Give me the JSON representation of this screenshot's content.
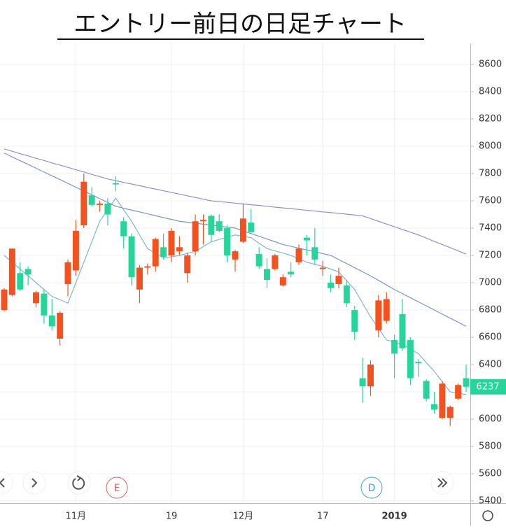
{
  "chart_data": {
    "type": "candlestick",
    "title": "エントリー前日の日足チャート",
    "categories": [
      null,
      null,
      null,
      null,
      null,
      null,
      null,
      null,
      null,
      "11月",
      null,
      null,
      null,
      null,
      null,
      null,
      null,
      null,
      null,
      null,
      null,
      "19",
      null,
      null,
      null,
      null,
      null,
      null,
      null,
      null,
      "12月",
      null,
      null,
      null,
      null,
      null,
      null,
      null,
      null,
      null,
      "17",
      null,
      null,
      null,
      null,
      null,
      null,
      null,
      null,
      "2019",
      null,
      null,
      null,
      null,
      null,
      null,
      null,
      null,
      null
    ],
    "bold_category": "2019",
    "ylim": [
      5400,
      8600
    ],
    "yticks": [
      5400,
      5600,
      5800,
      6000,
      6200,
      6400,
      6600,
      6800,
      7000,
      7200,
      7400,
      7600,
      7800,
      8000,
      8200,
      8400,
      8600
    ],
    "grid": true,
    "up_color": "#f4511e",
    "down_color": "#26d59a",
    "open": [
      6800,
      6910,
      7070,
      7100,
      6850,
      6920,
      6760,
      6590,
      6990,
      7090,
      7420,
      7640,
      7570,
      7580,
      7730,
      7450,
      7340,
      6950,
      7110,
      7120,
      7260,
      7200,
      7230,
      7070,
      7230,
      7450,
      7490,
      7450,
      7400,
      7170,
      7300,
      7440,
      7210,
      7100,
      7100,
      6980,
      7080,
      7150,
      7330,
      7260,
      7100,
      7000,
      6990,
      6980,
      6800,
      6300,
      6240,
      6650,
      6720,
      6580,
      6770,
      6580,
      6420,
      6280,
      6110,
      6010,
      6010,
      6150,
      6300
    ],
    "high": [
      6960,
      7250,
      7150,
      7120,
      6940,
      6950,
      6880,
      6790,
      7170,
      7460,
      7800,
      7700,
      7600,
      7620,
      7780,
      7480,
      7360,
      7130,
      7140,
      7330,
      7360,
      7400,
      7340,
      7220,
      7500,
      7500,
      7500,
      7500,
      7420,
      7240,
      7580,
      7540,
      7260,
      7180,
      7210,
      7060,
      7150,
      7280,
      7350,
      7400,
      7160,
      7060,
      7110,
      7020,
      6830,
      6450,
      6430,
      6910,
      6930,
      6620,
      6880,
      6600,
      6440,
      6290,
      6200,
      6280,
      6100,
      6260,
      6400
    ],
    "low": [
      6790,
      6900,
      6940,
      6980,
      6820,
      6700,
      6650,
      6540,
      6900,
      7050,
      7400,
      7560,
      7520,
      7420,
      7670,
      7250,
      6980,
      6850,
      7060,
      7080,
      7170,
      7150,
      7200,
      7000,
      7200,
      7280,
      7300,
      7370,
      7150,
      7080,
      7290,
      7360,
      7100,
      6960,
      7090,
      6970,
      7040,
      7130,
      7200,
      7130,
      7050,
      6930,
      6960,
      6820,
      6580,
      6120,
      6170,
      6600,
      6700,
      6300,
      6500,
      6250,
      6310,
      6130,
      6040,
      6000,
      5950,
      6140,
      6200
    ],
    "close": [
      6950,
      7250,
      6950,
      7060,
      6930,
      6760,
      6680,
      6780,
      7150,
      7380,
      7740,
      7570,
      7580,
      7500,
      7720,
      7340,
      7040,
      7110,
      7120,
      7320,
      7190,
      7380,
      7260,
      7200,
      7450,
      7460,
      7350,
      7380,
      7200,
      7230,
      7470,
      7370,
      7120,
      7020,
      7200,
      7040,
      7060,
      7250,
      7310,
      7170,
      7110,
      6960,
      7050,
      6850,
      6640,
      6240,
      6400,
      6870,
      6880,
      6480,
      6520,
      6300,
      6410,
      6150,
      6070,
      6260,
      6090,
      6250,
      6237
    ],
    "lines": [
      {
        "color": "#7fb6d9",
        "values": [
          7200,
          7150,
          7100,
          7050,
          7000,
          6950,
          6900,
          6875,
          6850,
          7000,
          7150,
          7300,
          7450,
          7535,
          7620,
          7535,
          7450,
          7350,
          7250,
          7215,
          7180,
          7190,
          7200,
          7215,
          7230,
          7265,
          7300,
          7317,
          7333,
          7350,
          7340,
          7330,
          7290,
          7250,
          7233,
          7217,
          7200,
          7175,
          7150,
          7135,
          7120,
          7100,
          7080,
          7015,
          6950,
          6850,
          6750,
          6665,
          6580,
          6565,
          6550,
          6515,
          6480,
          6415,
          6350,
          6275,
          6200,
          6190,
          6180
        ]
      },
      {
        "color": "#7c95cf",
        "values": [
          7950,
          7922,
          7894,
          7867,
          7839,
          7811,
          7783,
          7756,
          7728,
          7700,
          7672,
          7644,
          7616,
          7588,
          7560,
          7546,
          7532,
          7519,
          7505,
          7491,
          7477,
          7464,
          7450,
          7443,
          7436,
          7429,
          7421,
          7414,
          7407,
          7400,
          7380,
          7360,
          7340,
          7320,
          7300,
          7280,
          7267,
          7253,
          7240,
          7227,
          7213,
          7200,
          7170,
          7140,
          7110,
          7080,
          7050,
          7017,
          6983,
          6950,
          6920,
          6890,
          6860,
          6830,
          6800,
          6770,
          6740,
          6710,
          6680
        ]
      },
      {
        "color": "#988cd2",
        "values": [
          7980,
          7963,
          7946,
          7929,
          7912,
          7895,
          7878,
          7862,
          7845,
          7828,
          7811,
          7794,
          7777,
          7760,
          7748,
          7735,
          7723,
          7711,
          7698,
          7686,
          7674,
          7662,
          7649,
          7637,
          7625,
          7612,
          7600,
          7594,
          7589,
          7583,
          7577,
          7571,
          7566,
          7560,
          7554,
          7548,
          7543,
          7537,
          7531,
          7525,
          7519,
          7514,
          7508,
          7502,
          7496,
          7490,
          7470,
          7450,
          7430,
          7410,
          7390,
          7370,
          7350,
          7327,
          7303,
          7280,
          7257,
          7233,
          7210
        ]
      }
    ],
    "markers": [
      {
        "label": "E",
        "color": "#e35d6a"
      },
      {
        "label": "D",
        "color": "#3aa0e0"
      }
    ]
  }
}
